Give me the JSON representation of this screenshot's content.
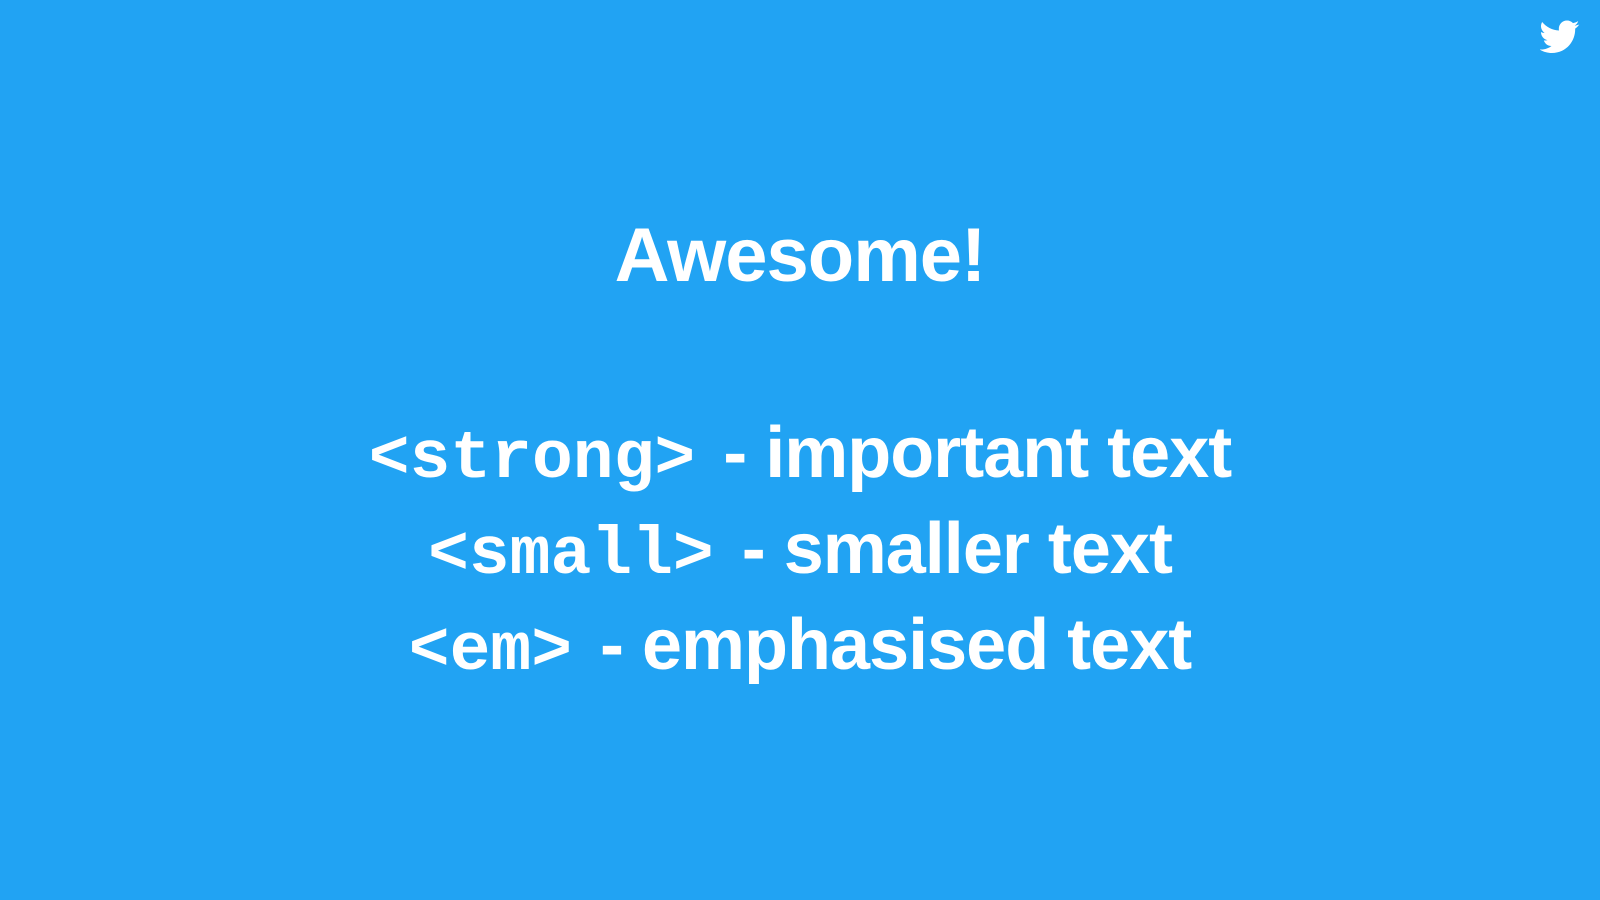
{
  "slide": {
    "title": "Awesome!",
    "background_color": "#21a3f3",
    "text_color": "#ffffff",
    "corner_icon": "twitter-bird-icon",
    "items": [
      {
        "tag": "<strong>",
        "description": "- important text"
      },
      {
        "tag": "<small>",
        "description": "- smaller text"
      },
      {
        "tag": "<em>",
        "description": "- emphasised text"
      }
    ]
  }
}
